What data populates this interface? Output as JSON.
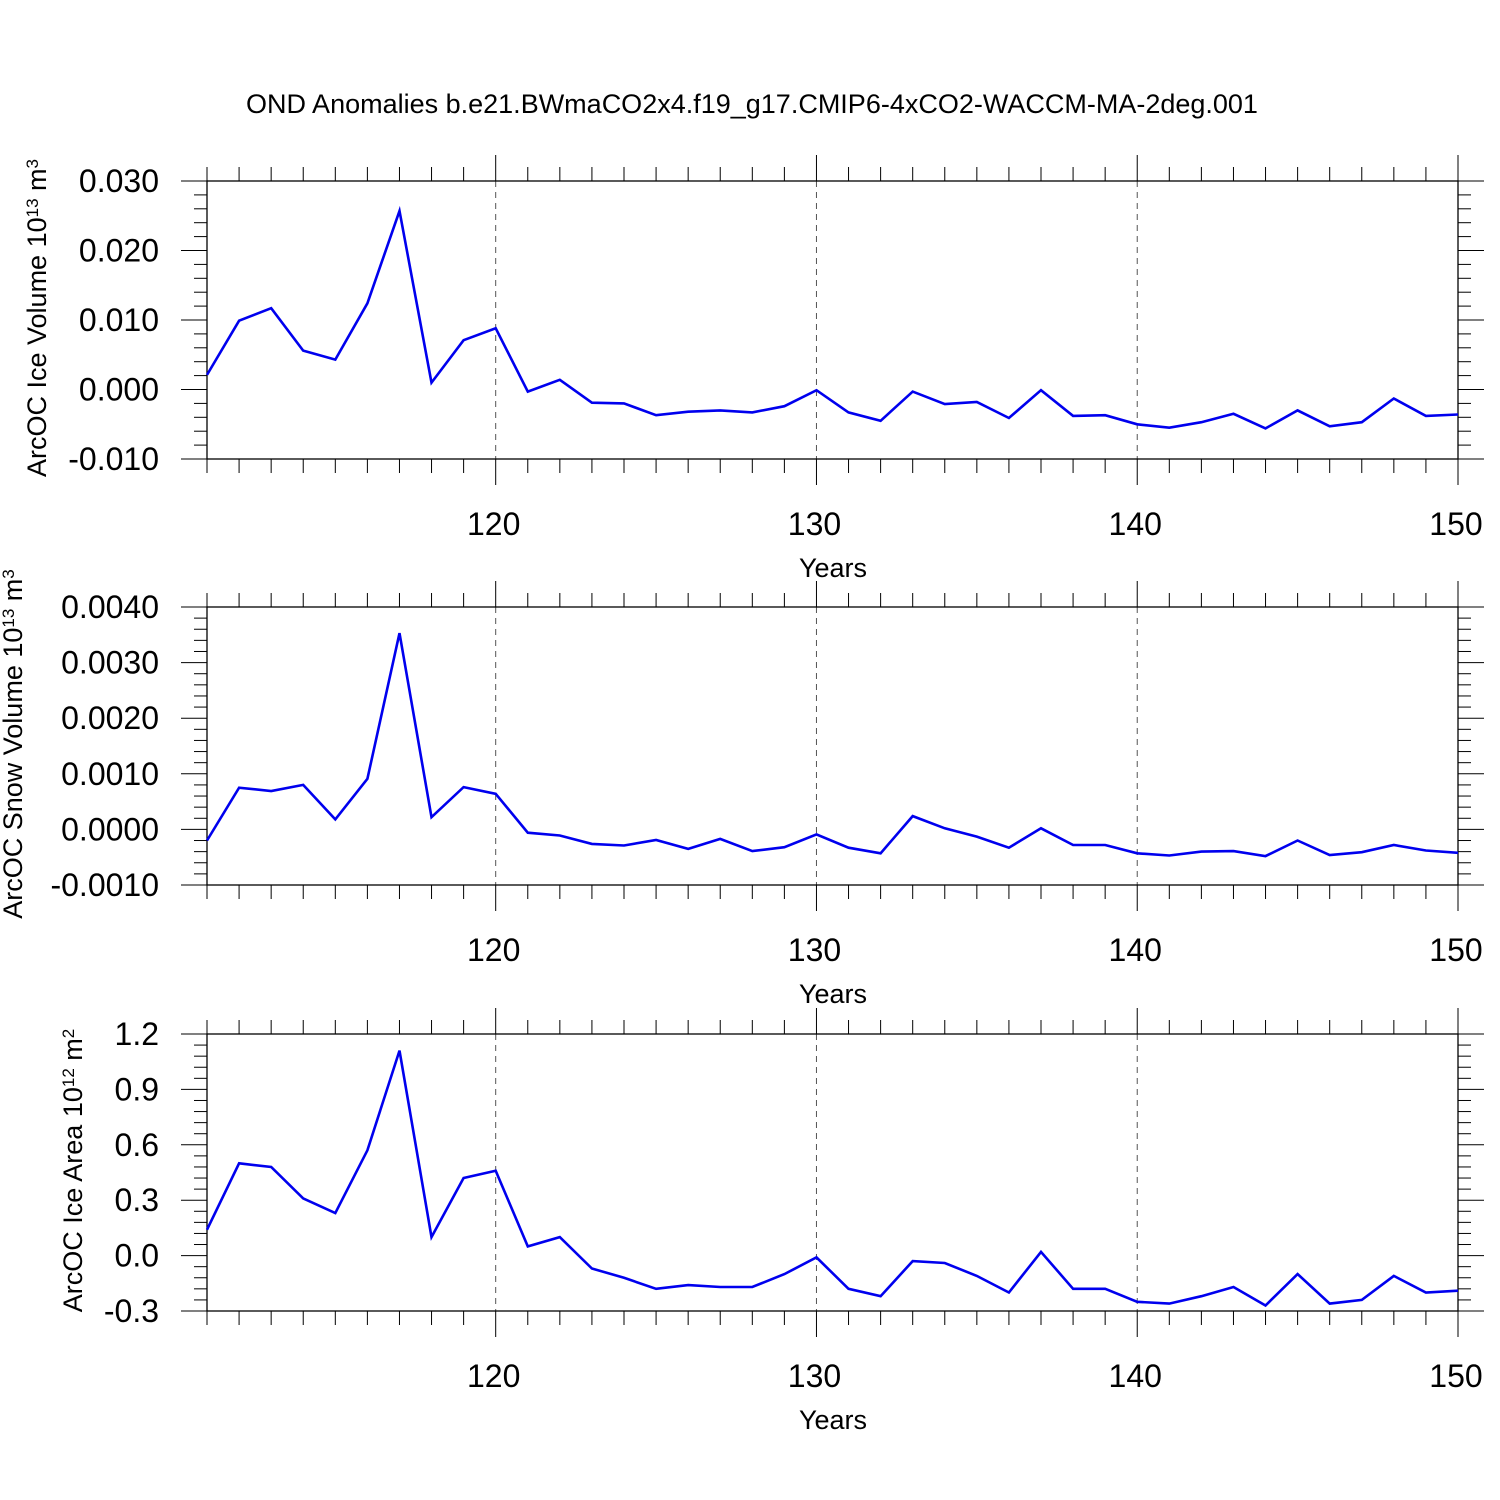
{
  "title": "OND Anomalies b.e21.BWmaCO2x4.f19_g17.CMIP6-4xCO2-WACCM-MA-2deg.001",
  "chart_data": [
    {
      "type": "line",
      "ylabel": "ArcOC Ice Volume 10",
      "ylabel_exp": "13",
      "ylabel_unit": " m",
      "ylabel_unit_exp": "3",
      "xlabel": "Years",
      "xlim": [
        111,
        150
      ],
      "ylim": [
        -0.01,
        0.03
      ],
      "yticks": [
        "0.030",
        "0.020",
        "0.010",
        "0.000",
        "-0.010"
      ],
      "ytick_values": [
        0.03,
        0.02,
        0.01,
        0.0,
        -0.01
      ],
      "xticks": [
        "120",
        "130",
        "140",
        "150"
      ],
      "xtick_values": [
        120,
        130,
        140,
        150
      ],
      "grid": "dashed vertical at major x ticks",
      "color": "#0000ee",
      "x": [
        111,
        112,
        113,
        114,
        115,
        116,
        117,
        118,
        119,
        120,
        121,
        122,
        123,
        124,
        125,
        126,
        127,
        128,
        129,
        130,
        131,
        132,
        133,
        134,
        135,
        136,
        137,
        138,
        139,
        140,
        141,
        142,
        143,
        144,
        145,
        146,
        147,
        148,
        149,
        150
      ],
      "values": [
        0.0021,
        0.0099,
        0.0117,
        0.0056,
        0.0043,
        0.0124,
        0.0257,
        0.001,
        0.0071,
        0.0088,
        -0.0003,
        0.0014,
        -0.0019,
        -0.002,
        -0.0037,
        -0.0032,
        -0.003,
        -0.0033,
        -0.0024,
        -0.0001,
        -0.0033,
        -0.0045,
        -0.0003,
        -0.0021,
        -0.0018,
        -0.0041,
        -0.0001,
        -0.0038,
        -0.0037,
        -0.005,
        -0.0055,
        -0.0047,
        -0.0035,
        -0.0056,
        -0.003,
        -0.0053,
        -0.0047,
        -0.0013,
        -0.0038,
        -0.0036
      ]
    },
    {
      "type": "line",
      "ylabel": "ArcOC Snow Volume 10",
      "ylabel_exp": "13",
      "ylabel_unit": " m",
      "ylabel_unit_exp": "3",
      "xlabel": "Years",
      "xlim": [
        111,
        150
      ],
      "ylim": [
        -0.001,
        0.004
      ],
      "yticks": [
        "0.0040",
        "0.0030",
        "0.0020",
        "0.0010",
        "0.0000",
        "-0.0010"
      ],
      "ytick_values": [
        0.004,
        0.003,
        0.002,
        0.001,
        0.0,
        -0.001
      ],
      "xticks": [
        "120",
        "130",
        "140",
        "150"
      ],
      "xtick_values": [
        120,
        130,
        140,
        150
      ],
      "grid": "dashed vertical at major x ticks",
      "color": "#0000ee",
      "x": [
        111,
        112,
        113,
        114,
        115,
        116,
        117,
        118,
        119,
        120,
        121,
        122,
        123,
        124,
        125,
        126,
        127,
        128,
        129,
        130,
        131,
        132,
        133,
        134,
        135,
        136,
        137,
        138,
        139,
        140,
        141,
        142,
        143,
        144,
        145,
        146,
        147,
        148,
        149,
        150
      ],
      "values": [
        -0.0002,
        0.00075,
        0.00069,
        0.0008,
        0.00018,
        0.00091,
        0.00353,
        0.00022,
        0.00076,
        0.00064,
        -6e-05,
        -0.00011,
        -0.00026,
        -0.00029,
        -0.00019,
        -0.00035,
        -0.00017,
        -0.00039,
        -0.00032,
        -9e-05,
        -0.00033,
        -0.00043,
        0.00024,
        2e-05,
        -0.00013,
        -0.00033,
        2e-05,
        -0.00028,
        -0.00028,
        -0.00043,
        -0.00047,
        -0.0004,
        -0.00039,
        -0.00048,
        -0.0002,
        -0.00046,
        -0.00041,
        -0.00028,
        -0.00038,
        -0.00042
      ]
    },
    {
      "type": "line",
      "ylabel": "ArcOC Ice Area 10",
      "ylabel_exp": "12",
      "ylabel_unit": " m",
      "ylabel_unit_exp": "2",
      "xlabel": "Years",
      "xlim": [
        111,
        150
      ],
      "ylim": [
        -0.3,
        1.2
      ],
      "yticks": [
        "1.2",
        "0.9",
        "0.6",
        "0.3",
        "0.0",
        "-0.3"
      ],
      "ytick_values": [
        1.2,
        0.9,
        0.6,
        0.3,
        0.0,
        -0.3
      ],
      "xticks": [
        "120",
        "130",
        "140",
        "150"
      ],
      "xtick_values": [
        120,
        130,
        140,
        150
      ],
      "grid": "dashed vertical at major x ticks",
      "color": "#0000ee",
      "x": [
        111,
        112,
        113,
        114,
        115,
        116,
        117,
        118,
        119,
        120,
        121,
        122,
        123,
        124,
        125,
        126,
        127,
        128,
        129,
        130,
        131,
        132,
        133,
        134,
        135,
        136,
        137,
        138,
        139,
        140,
        141,
        142,
        143,
        144,
        145,
        146,
        147,
        148,
        149,
        150
      ],
      "values": [
        0.14,
        0.5,
        0.48,
        0.31,
        0.23,
        0.57,
        1.11,
        0.1,
        0.42,
        0.46,
        0.05,
        0.1,
        -0.07,
        -0.12,
        -0.18,
        -0.16,
        -0.17,
        -0.17,
        -0.1,
        -0.01,
        -0.18,
        -0.22,
        -0.03,
        -0.04,
        -0.11,
        -0.2,
        0.02,
        -0.18,
        -0.18,
        -0.25,
        -0.26,
        -0.22,
        -0.17,
        -0.27,
        -0.1,
        -0.26,
        -0.24,
        -0.11,
        -0.2,
        -0.19
      ]
    }
  ]
}
